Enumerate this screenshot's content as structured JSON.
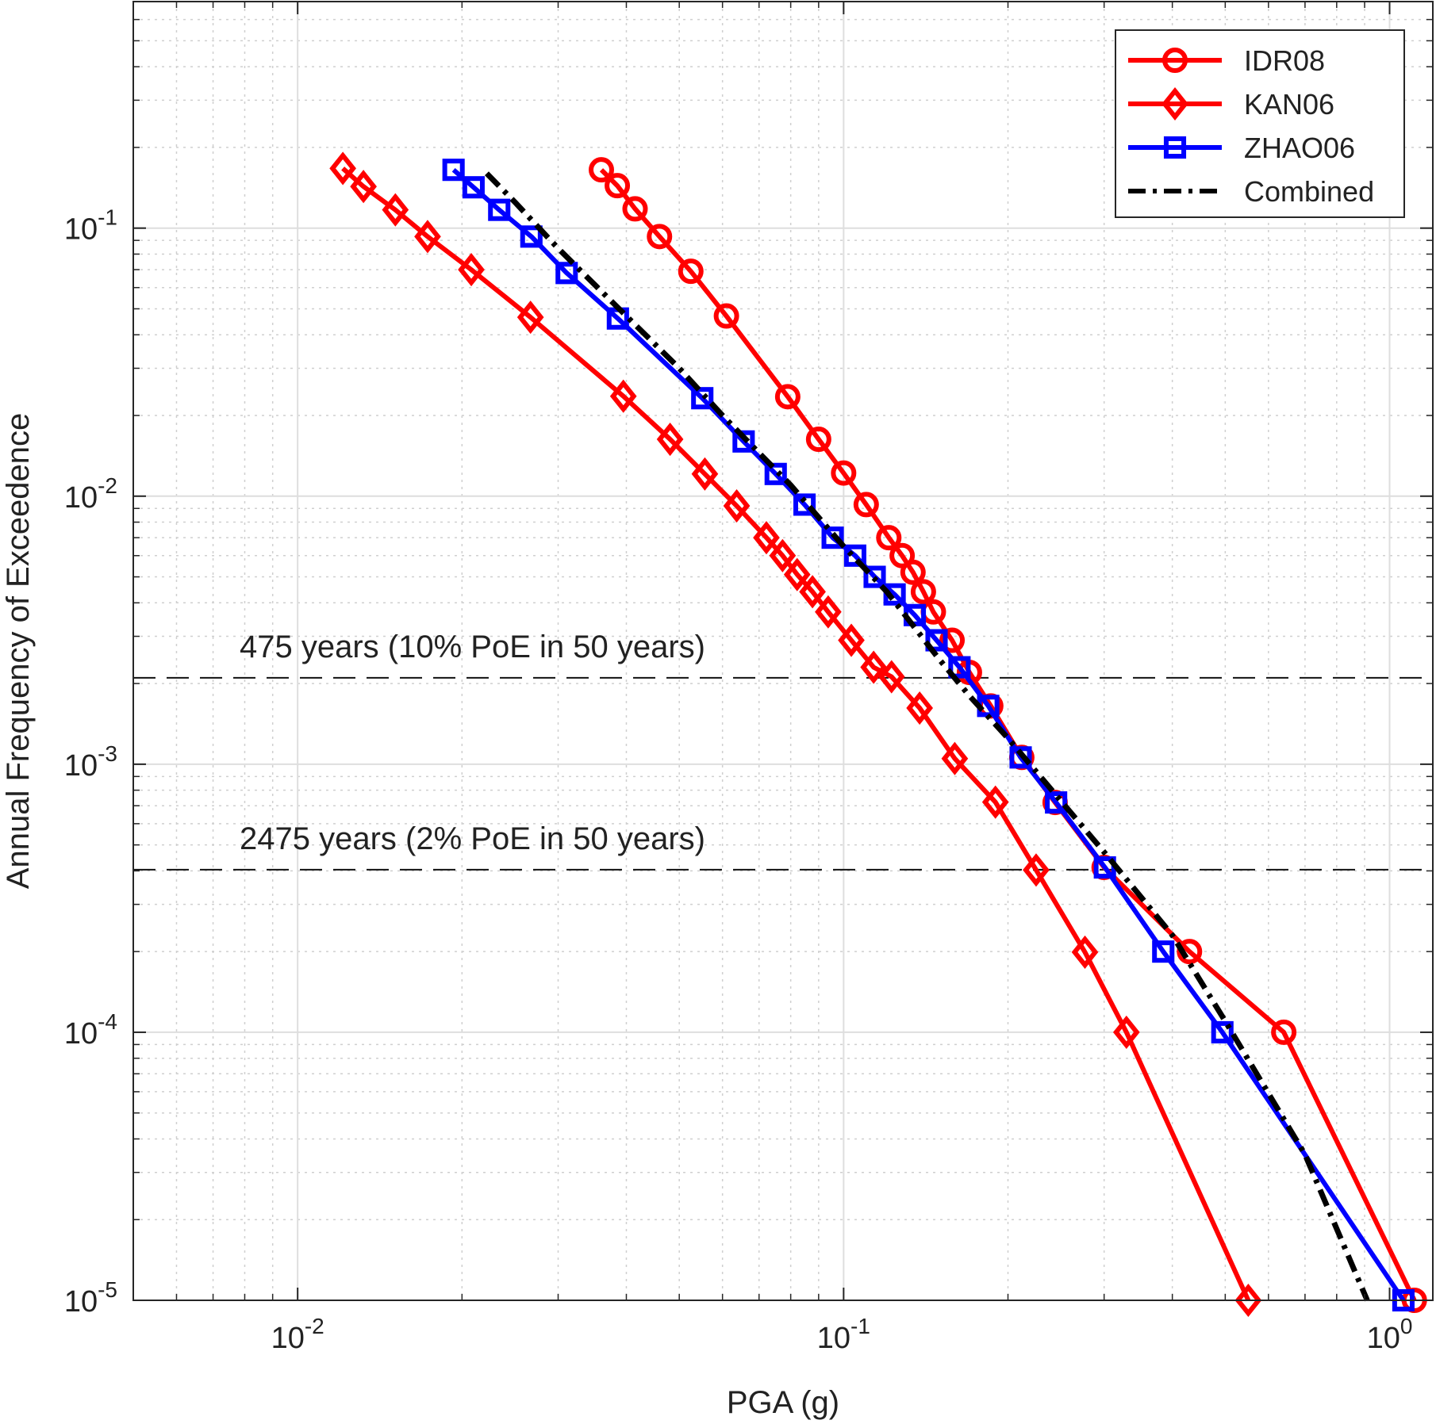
{
  "chart_data": {
    "type": "line",
    "xlabel": "PGA (g)",
    "ylabel": "Annual Frequency of Exceedence",
    "xscale": "log",
    "yscale": "log",
    "xlim": [
      0.005,
      1.2
    ],
    "ylim": [
      1e-05,
      0.7
    ],
    "grid": true,
    "legend_position": "top-right",
    "x_ticks": [
      {
        "base": "10",
        "exp": "-2",
        "value": 0.01
      },
      {
        "base": "10",
        "exp": "-1",
        "value": 0.1
      },
      {
        "base": "10",
        "exp": "0",
        "value": 1
      }
    ],
    "y_ticks": [
      {
        "base": "10",
        "exp": "-1",
        "value": 0.1
      },
      {
        "base": "10",
        "exp": "-2",
        "value": 0.01
      },
      {
        "base": "10",
        "exp": "-3",
        "value": 0.001
      },
      {
        "base": "10",
        "exp": "-4",
        "value": 0.0001
      },
      {
        "base": "10",
        "exp": "-5",
        "value": 1e-05
      }
    ],
    "reference_lines": [
      {
        "label": "475 years (10% PoE in 50 years)",
        "y": 0.0021
      },
      {
        "label": "2475 years (2% PoE in 50 years)",
        "y": 0.000404
      }
    ],
    "series": [
      {
        "name": "IDR08",
        "color": "#ff0000",
        "marker": "circle",
        "dash": "solid",
        "x": [
          0.036,
          0.0385,
          0.0415,
          0.046,
          0.0525,
          0.061,
          0.079,
          0.09,
          0.1,
          0.11,
          0.121,
          0.128,
          0.134,
          0.14,
          0.146,
          0.158,
          0.17,
          0.186,
          0.212,
          0.244,
          0.3,
          0.43,
          0.64,
          1.11
        ],
        "y": [
          0.165,
          0.144,
          0.118,
          0.093,
          0.069,
          0.047,
          0.0235,
          0.0163,
          0.0122,
          0.0093,
          0.007,
          0.006,
          0.0052,
          0.0044,
          0.0037,
          0.0029,
          0.0022,
          0.00165,
          0.00106,
          0.00072,
          0.000412,
          0.0002,
          0.0001,
          1e-05
        ]
      },
      {
        "name": "KAN06",
        "color": "#ff0000",
        "marker": "diamond",
        "dash": "solid",
        "x": [
          0.0121,
          0.0132,
          0.0151,
          0.0173,
          0.0208,
          0.0267,
          0.0395,
          0.0481,
          0.0557,
          0.0637,
          0.0722,
          0.0773,
          0.0822,
          0.0877,
          0.0937,
          0.1033,
          0.1135,
          0.1224,
          0.1378,
          0.1598,
          0.1897,
          0.2252,
          0.2767,
          0.3296,
          0.551
        ],
        "y": [
          0.167,
          0.143,
          0.117,
          0.093,
          0.07,
          0.0465,
          0.0236,
          0.0163,
          0.0121,
          0.0092,
          0.007,
          0.006,
          0.0051,
          0.0044,
          0.0037,
          0.0029,
          0.0023,
          0.00212,
          0.00162,
          0.00105,
          0.000722,
          0.000403,
          0.000199,
          0.0001,
          1e-05
        ]
      },
      {
        "name": "ZHAO06",
        "color": "#0000ff",
        "marker": "square",
        "dash": "solid",
        "x": [
          0.0193,
          0.021,
          0.0234,
          0.0268,
          0.0311,
          0.0386,
          0.0551,
          0.0656,
          0.0751,
          0.0848,
          0.0955,
          0.105,
          0.114,
          0.124,
          0.135,
          0.148,
          0.163,
          0.184,
          0.211,
          0.245,
          0.301,
          0.385,
          0.494,
          1.06
        ],
        "y": [
          0.165,
          0.142,
          0.117,
          0.093,
          0.068,
          0.046,
          0.0232,
          0.016,
          0.0121,
          0.0093,
          0.007,
          0.006,
          0.005,
          0.0043,
          0.0036,
          0.0029,
          0.0023,
          0.00165,
          0.00106,
          0.00072,
          0.000412,
          0.0002,
          0.0001,
          1e-05
        ]
      },
      {
        "name": "Combined",
        "color": "#000000",
        "marker": "none",
        "dash": "dashdot",
        "x": [
          0.0222,
          0.025,
          0.03,
          0.04,
          0.05,
          0.06,
          0.07,
          0.08,
          0.1,
          0.12,
          0.15,
          0.17,
          0.2,
          0.25,
          0.3,
          0.4,
          0.5,
          0.7,
          0.91
        ],
        "y": [
          0.16,
          0.125,
          0.084,
          0.047,
          0.03,
          0.02,
          0.0145,
          0.011,
          0.0065,
          0.0044,
          0.00245,
          0.0018,
          0.00125,
          0.00073,
          0.00047,
          0.00023,
          0.00011,
          3.5e-05,
          1e-05
        ]
      }
    ]
  }
}
